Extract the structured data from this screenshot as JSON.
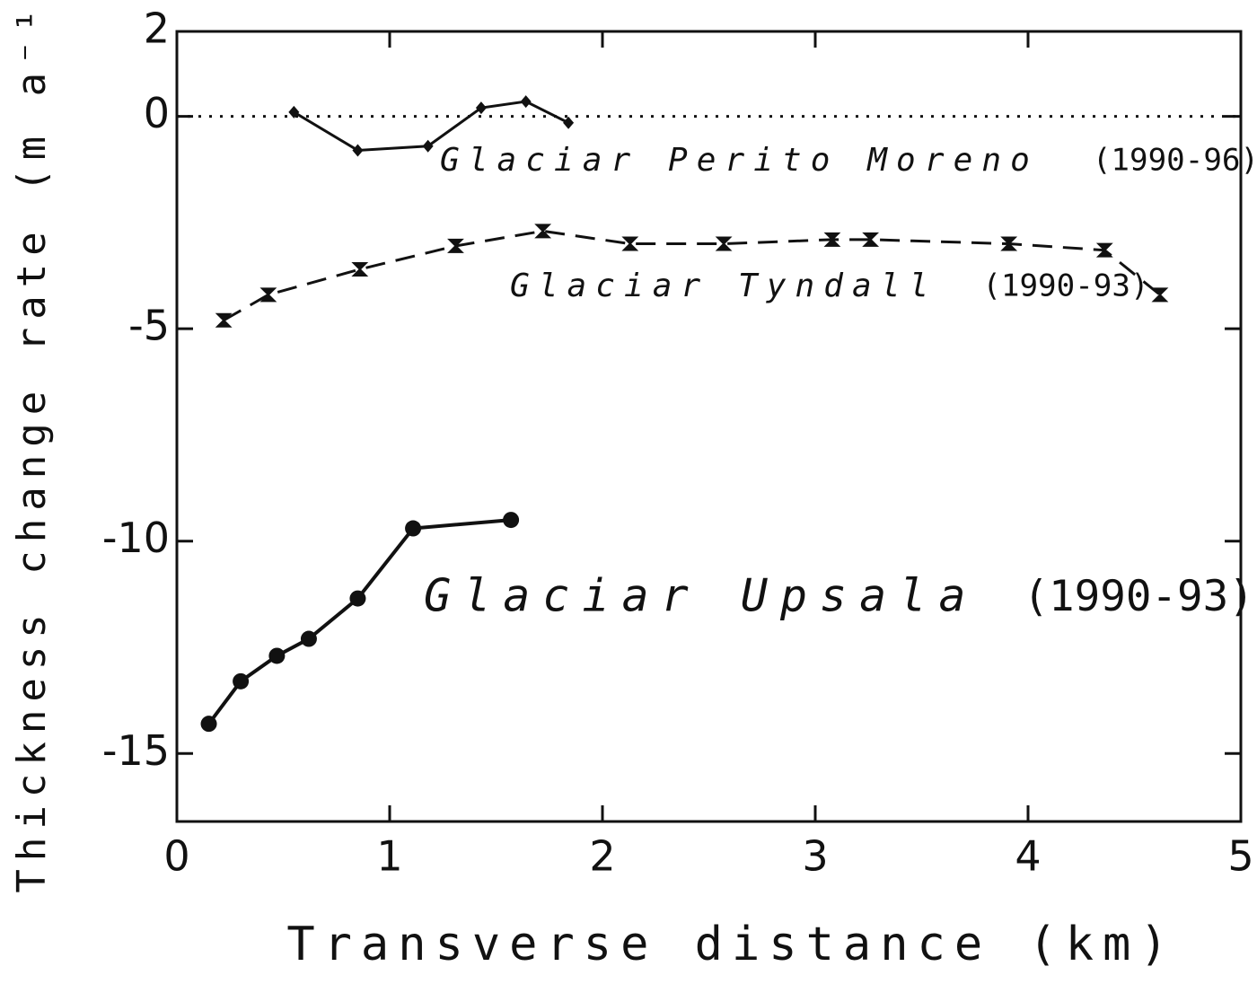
{
  "chart_data": {
    "type": "line",
    "xlabel": "Transverse distance (km)",
    "ylabel": "Thickness change rate (m a⁻¹)",
    "xlim": [
      0,
      5
    ],
    "ylim": [
      -16.6,
      2
    ],
    "xticks": [
      0,
      1,
      2,
      3,
      4,
      5
    ],
    "yticks": [
      2,
      0,
      -5,
      -10,
      -15
    ],
    "reference_line": 0,
    "series": [
      {
        "name": "Glaciar Perito Moreno",
        "period": "(1990-96)",
        "color": "#111111",
        "style": "solid",
        "marker": "diamond",
        "x": [
          0.55,
          0.85,
          1.18,
          1.43,
          1.64,
          1.84
        ],
        "values": [
          0.1,
          -0.8,
          -0.7,
          0.2,
          0.35,
          -0.15
        ]
      },
      {
        "name": "Glaciar Tyndall",
        "period": "(1990-93)",
        "color": "#111111",
        "style": "dashed",
        "marker": "errorbar",
        "x": [
          0.22,
          0.43,
          0.86,
          1.31,
          1.72,
          2.13,
          2.57,
          3.08,
          3.26,
          3.91,
          4.36,
          4.62
        ],
        "values": [
          -4.8,
          -4.2,
          -3.6,
          -3.05,
          -2.7,
          -3.0,
          -3.0,
          -2.9,
          -2.9,
          -3.0,
          -3.15,
          -4.2
        ]
      },
      {
        "name": "Glaciar Upsala",
        "period": "(1990-93)",
        "color": "#111111",
        "style": "solid",
        "marker": "circle",
        "x": [
          0.15,
          0.3,
          0.47,
          0.62,
          0.85,
          1.11,
          1.57
        ],
        "values": [
          -14.3,
          -13.3,
          -12.7,
          -12.3,
          -11.35,
          -9.7,
          -9.5
        ]
      }
    ]
  }
}
